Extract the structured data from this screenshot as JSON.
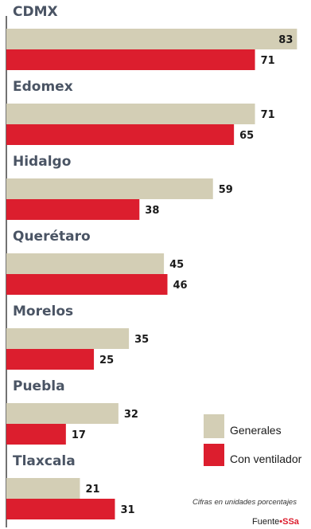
{
  "chart_data": {
    "type": "bar",
    "orientation": "horizontal",
    "categories": [
      "CDMX",
      "Edomex",
      "Hidalgo",
      "Querétaro",
      "Morelos",
      "Puebla",
      "Tlaxcala"
    ],
    "series": [
      {
        "name": "Generales",
        "values": [
          83,
          71,
          59,
          45,
          35,
          32,
          21
        ],
        "color": "#d3ceb5"
      },
      {
        "name": "Con ventilador",
        "values": [
          71,
          65,
          38,
          46,
          25,
          17,
          31
        ],
        "color": "#dc1e2e"
      }
    ],
    "xlim": [
      0,
      87
    ],
    "grid": false,
    "legend_position": "bottom-right",
    "data_labels": true
  },
  "note": "Cifras en unidades porcentajes",
  "source": {
    "prefix": "Fuente",
    "separator": "•",
    "brand": "SSa"
  },
  "colors": {
    "label_text": "#4a5464",
    "axis_line": "#444444",
    "brand": "#dc1e2e"
  }
}
